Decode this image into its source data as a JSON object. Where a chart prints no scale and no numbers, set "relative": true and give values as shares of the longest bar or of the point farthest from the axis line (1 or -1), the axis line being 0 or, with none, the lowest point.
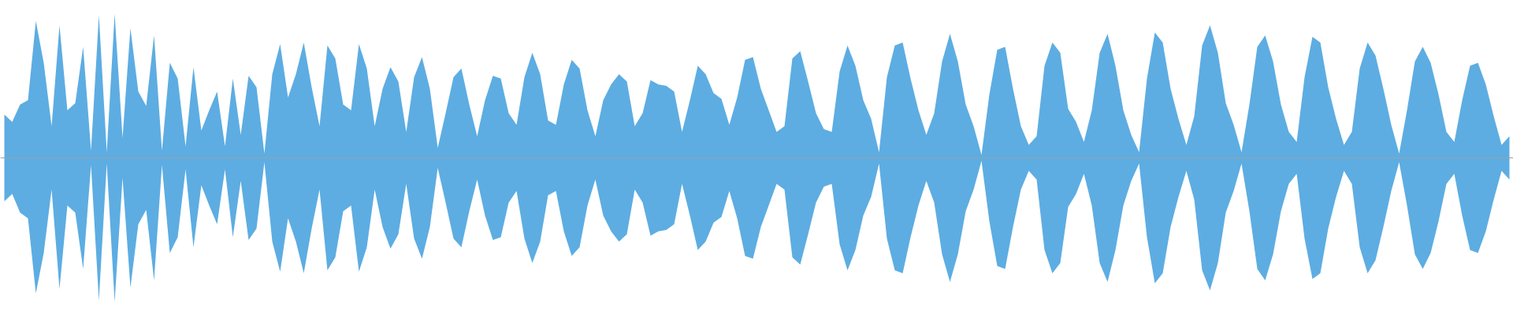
{
  "chart_data": {
    "type": "area",
    "relative": true,
    "categories": [
      null,
      null,
      null,
      null,
      null,
      null,
      null,
      null,
      null,
      null,
      null,
      null,
      null,
      null,
      null,
      null,
      null,
      null,
      null,
      null,
      null,
      null,
      null,
      null,
      null,
      null,
      null,
      null,
      null,
      null,
      null,
      null,
      null,
      null,
      null,
      null,
      null,
      null,
      null,
      null,
      null,
      null,
      null,
      null,
      null,
      null,
      null,
      null,
      null,
      null,
      null,
      null,
      null,
      null,
      null,
      null,
      null,
      null,
      null,
      null,
      null,
      null,
      null,
      null,
      null,
      null,
      null,
      null,
      null,
      null,
      null,
      null,
      null,
      null,
      null,
      null,
      null,
      null,
      null,
      null,
      null,
      null,
      null,
      null,
      null,
      null,
      null,
      null,
      null,
      null,
      null,
      null,
      null,
      null,
      null,
      null,
      null,
      null,
      null,
      null,
      null,
      null,
      null,
      null,
      null,
      null,
      null,
      null,
      null,
      null,
      null,
      null,
      null,
      null,
      null,
      null,
      null,
      null,
      null,
      null,
      null,
      null,
      null,
      null,
      null,
      null,
      null,
      null,
      null,
      null,
      null,
      null,
      null,
      null,
      null,
      null,
      null,
      null,
      null,
      null,
      null,
      null,
      null,
      null,
      null,
      null,
      null,
      null,
      null,
      null,
      null,
      null,
      null,
      null,
      null,
      null,
      null,
      null,
      null,
      null,
      null,
      null,
      null,
      null,
      null,
      null,
      null,
      null,
      null,
      null,
      null,
      null,
      null,
      null,
      null,
      null,
      null,
      null,
      null,
      null,
      null,
      null,
      null,
      null,
      null,
      null,
      null,
      null,
      null,
      null,
      null,
      null
    ],
    "series": [
      {
        "color": "#5dade2",
        "values": [
          0.3,
          0.25,
          0.37,
          0.4,
          0.95,
          0.66,
          0.22,
          0.92,
          0.33,
          0.38,
          0.77,
          0.05,
          0.99,
          0.04,
          1.0,
          0.14,
          0.9,
          0.46,
          0.36,
          0.85,
          0.05,
          0.66,
          0.55,
          0.08,
          0.63,
          0.19,
          0.33,
          0.46,
          0.08,
          0.55,
          0.16,
          0.57,
          0.49,
          0.03,
          0.58,
          0.79,
          0.42,
          0.58,
          0.8,
          0.49,
          0.22,
          0.78,
          0.69,
          0.37,
          0.33,
          0.79,
          0.62,
          0.22,
          0.48,
          0.63,
          0.53,
          0.18,
          0.56,
          0.7,
          0.48,
          0.07,
          0.31,
          0.56,
          0.62,
          0.37,
          0.15,
          0.4,
          0.57,
          0.55,
          0.31,
          0.23,
          0.56,
          0.73,
          0.58,
          0.26,
          0.23,
          0.51,
          0.68,
          0.62,
          0.33,
          0.15,
          0.4,
          0.51,
          0.58,
          0.53,
          0.22,
          0.31,
          0.54,
          0.51,
          0.5,
          0.46,
          0.18,
          0.4,
          0.64,
          0.58,
          0.45,
          0.41,
          0.23,
          0.42,
          0.68,
          0.7,
          0.48,
          0.33,
          0.18,
          0.22,
          0.69,
          0.74,
          0.53,
          0.31,
          0.2,
          0.18,
          0.6,
          0.78,
          0.64,
          0.4,
          0.27,
          0.04,
          0.56,
          0.78,
          0.8,
          0.55,
          0.33,
          0.16,
          0.31,
          0.67,
          0.86,
          0.67,
          0.37,
          0.22,
          0.02,
          0.44,
          0.75,
          0.77,
          0.48,
          0.22,
          0.09,
          0.15,
          0.64,
          0.8,
          0.73,
          0.34,
          0.25,
          0.11,
          0.33,
          0.73,
          0.86,
          0.64,
          0.33,
          0.16,
          0.04,
          0.55,
          0.87,
          0.8,
          0.48,
          0.27,
          0.09,
          0.29,
          0.78,
          0.92,
          0.73,
          0.38,
          0.23,
          0.04,
          0.37,
          0.77,
          0.85,
          0.67,
          0.37,
          0.18,
          0.11,
          0.56,
          0.84,
          0.8,
          0.49,
          0.27,
          0.09,
          0.18,
          0.62,
          0.8,
          0.71,
          0.48,
          0.23,
          0.03,
          0.33,
          0.67,
          0.77,
          0.66,
          0.44,
          0.18,
          0.11,
          0.4,
          0.64,
          0.66,
          0.51,
          0.29,
          0.09,
          0.15
        ]
      },
      {
        "color": "#5dade2",
        "values": [
          -0.3,
          -0.25,
          -0.38,
          -0.42,
          -0.94,
          -0.66,
          -0.22,
          -0.91,
          -0.33,
          -0.38,
          -0.77,
          -0.05,
          -0.99,
          -0.04,
          -1.0,
          -0.14,
          -0.9,
          -0.46,
          -0.36,
          -0.85,
          -0.05,
          -0.66,
          -0.55,
          -0.08,
          -0.62,
          -0.19,
          -0.33,
          -0.46,
          -0.08,
          -0.55,
          -0.16,
          -0.57,
          -0.49,
          -0.03,
          -0.58,
          -0.79,
          -0.42,
          -0.58,
          -0.8,
          -0.49,
          -0.22,
          -0.78,
          -0.69,
          -0.37,
          -0.33,
          -0.79,
          -0.62,
          -0.22,
          -0.48,
          -0.63,
          -0.53,
          -0.18,
          -0.56,
          -0.7,
          -0.48,
          -0.07,
          -0.31,
          -0.56,
          -0.62,
          -0.37,
          -0.15,
          -0.4,
          -0.57,
          -0.55,
          -0.31,
          -0.23,
          -0.56,
          -0.73,
          -0.58,
          -0.26,
          -0.23,
          -0.51,
          -0.68,
          -0.62,
          -0.33,
          -0.15,
          -0.4,
          -0.51,
          -0.58,
          -0.53,
          -0.22,
          -0.31,
          -0.54,
          -0.51,
          -0.5,
          -0.46,
          -0.18,
          -0.4,
          -0.64,
          -0.58,
          -0.45,
          -0.41,
          -0.23,
          -0.42,
          -0.68,
          -0.7,
          -0.48,
          -0.33,
          -0.18,
          -0.22,
          -0.69,
          -0.74,
          -0.53,
          -0.31,
          -0.2,
          -0.18,
          -0.6,
          -0.78,
          -0.64,
          -0.4,
          -0.27,
          -0.04,
          -0.56,
          -0.78,
          -0.8,
          -0.55,
          -0.33,
          -0.16,
          -0.31,
          -0.67,
          -0.86,
          -0.67,
          -0.37,
          -0.22,
          -0.02,
          -0.44,
          -0.75,
          -0.77,
          -0.48,
          -0.22,
          -0.09,
          -0.15,
          -0.64,
          -0.8,
          -0.73,
          -0.34,
          -0.25,
          -0.11,
          -0.33,
          -0.73,
          -0.86,
          -0.64,
          -0.33,
          -0.16,
          -0.04,
          -0.55,
          -0.87,
          -0.8,
          -0.48,
          -0.27,
          -0.09,
          -0.29,
          -0.78,
          -0.92,
          -0.73,
          -0.38,
          -0.23,
          -0.04,
          -0.37,
          -0.77,
          -0.85,
          -0.67,
          -0.37,
          -0.18,
          -0.11,
          -0.56,
          -0.84,
          -0.8,
          -0.49,
          -0.27,
          -0.09,
          -0.18,
          -0.62,
          -0.8,
          -0.71,
          -0.48,
          -0.23,
          -0.03,
          -0.33,
          -0.67,
          -0.77,
          -0.66,
          -0.44,
          -0.18,
          -0.11,
          -0.4,
          -0.64,
          -0.66,
          -0.51,
          -0.29,
          -0.09,
          -0.15
        ]
      }
    ]
  }
}
